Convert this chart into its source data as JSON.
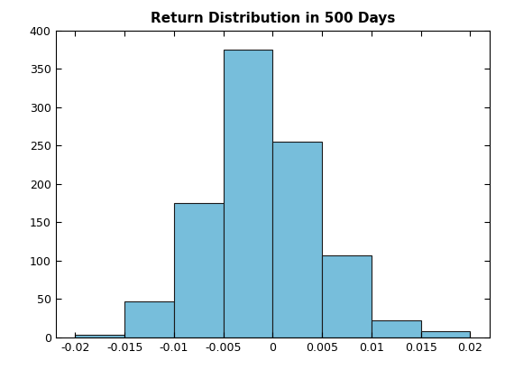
{
  "title": "Return Distribution in 500 Days",
  "bar_color": "#77BEDB",
  "edge_color": "#1A1A1A",
  "xlim": [
    -0.022,
    0.022
  ],
  "ylim": [
    0,
    400
  ],
  "bin_edges": [
    -0.02,
    -0.015,
    -0.01,
    -0.005,
    0.0,
    0.005,
    0.01,
    0.015,
    0.02
  ],
  "counts": [
    3,
    47,
    175,
    375,
    255,
    107,
    22,
    8
  ],
  "xticks": [
    -0.02,
    -0.015,
    -0.01,
    -0.005,
    0.0,
    0.005,
    0.01,
    0.015,
    0.02
  ],
  "yticks": [
    0,
    50,
    100,
    150,
    200,
    250,
    300,
    350,
    400
  ],
  "title_fontsize": 11,
  "tick_fontsize": 9,
  "figsize": [
    5.6,
    4.2
  ],
  "dpi": 100
}
